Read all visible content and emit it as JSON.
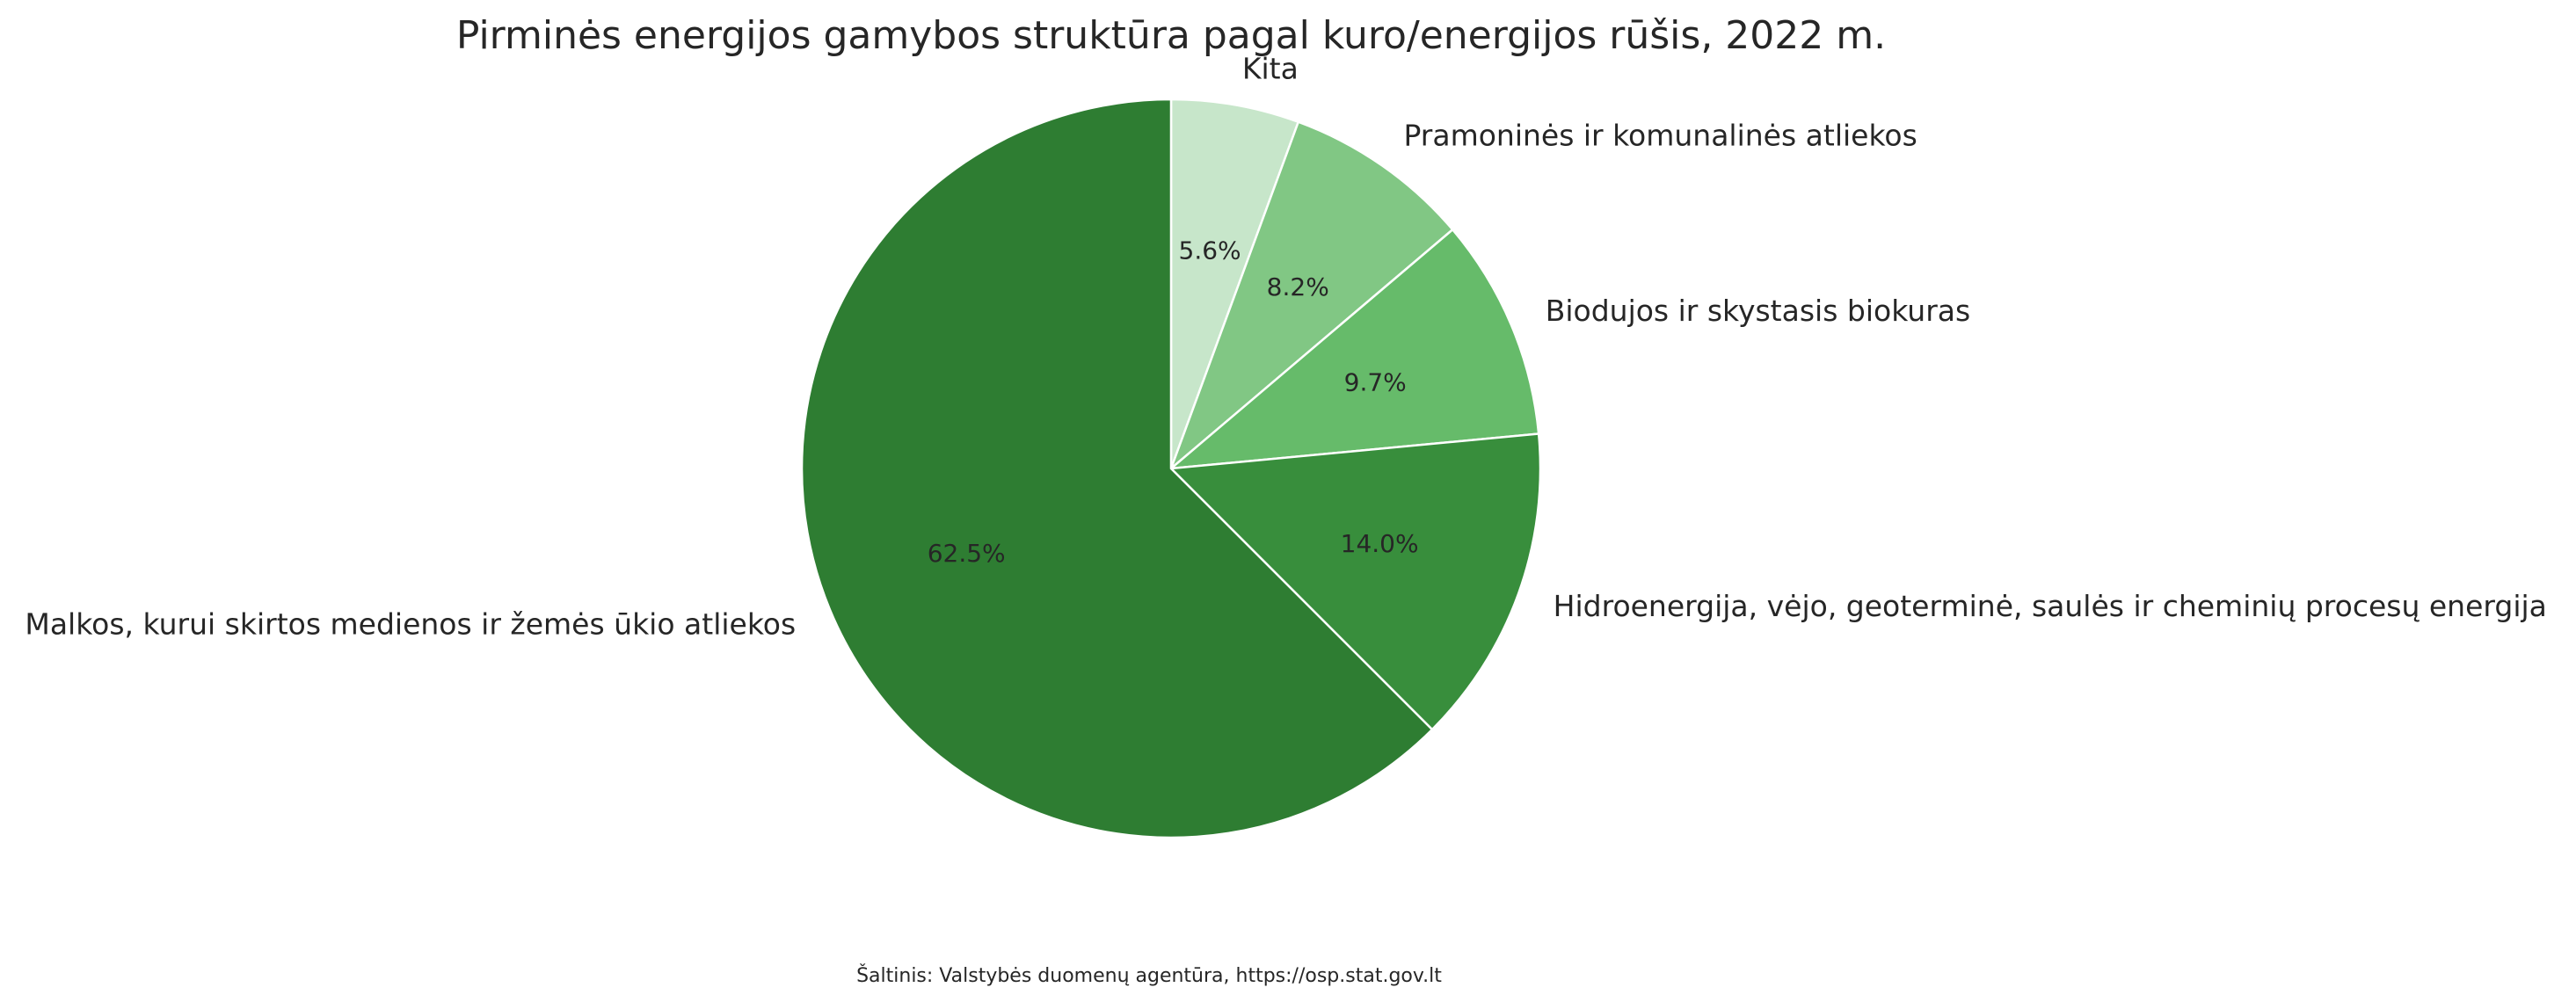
{
  "chart_data": {
    "type": "pie",
    "title": "Pirminės energijos gamybos struktūra pagal kuro/energijos rūšis, 2022 m.",
    "start_angle_deg": 90,
    "direction": "clockwise",
    "slices": [
      {
        "label": "Kita",
        "value": 5.6,
        "pct_label": "5.6%",
        "color": "#c7e6ca"
      },
      {
        "label": "Pramoninės ir komunalinės atliekos",
        "value": 8.2,
        "pct_label": "8.2%",
        "color": "#81c784"
      },
      {
        "label": "Biodujos ir skystasis biokuras",
        "value": 9.7,
        "pct_label": "9.7%",
        "color": "#66bb6a"
      },
      {
        "label": "Hidroenergija, vėjo, geoterminė, saulės ir cheminių procesų energija",
        "value": 14.0,
        "pct_label": "14.0%",
        "color": "#388e3c"
      },
      {
        "label": "Malkos, kurui skirtos medienos ir žemės ūkio atliekos",
        "value": 62.5,
        "pct_label": "62.5%",
        "color": "#2e7d32"
      }
    ],
    "edge_color": "#ffffff",
    "source_note": "Šaltinis: Valstybės duomenų agentūra, https://osp.stat.gov.lt"
  }
}
